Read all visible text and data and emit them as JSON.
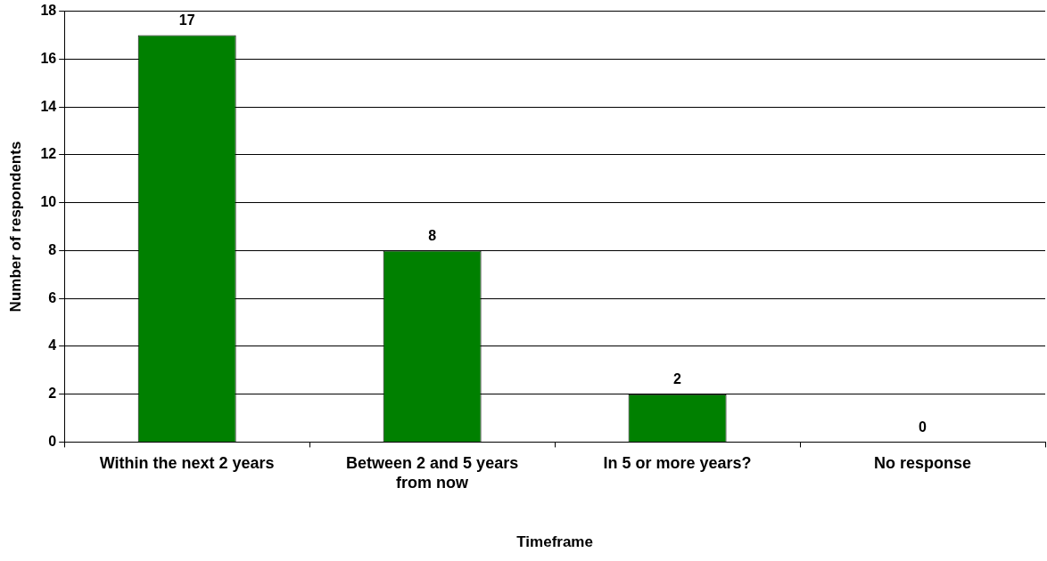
{
  "chart_data": {
    "type": "bar",
    "xlabel": "Timeframe",
    "ylabel": "Number of respondents",
    "categories": [
      "Within the next 2 years",
      "Between 2 and 5 years from now",
      "In 5 or more years?",
      "No response"
    ],
    "values": [
      17,
      8,
      2,
      0
    ],
    "color": "#008000",
    "ylim": [
      0,
      18
    ],
    "yticks": [
      0,
      2,
      4,
      6,
      8,
      10,
      12,
      14,
      16,
      18
    ],
    "grid": "y",
    "data_labels": true,
    "legend": false
  }
}
